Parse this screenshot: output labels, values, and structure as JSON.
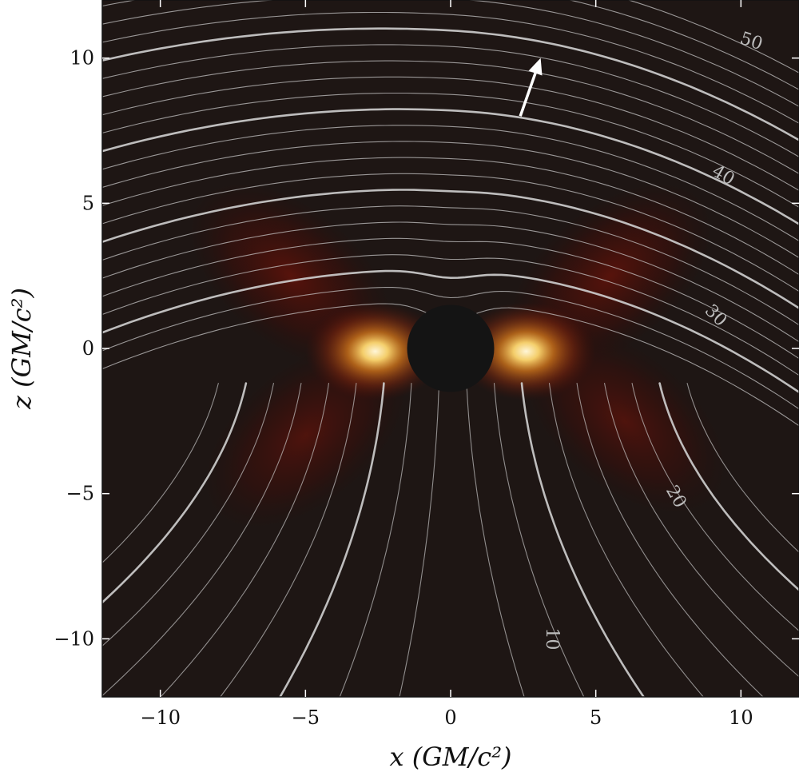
{
  "chart_data": {
    "type": "heatmap",
    "title": "",
    "xlabel": "x (GM/c²)",
    "ylabel": "z (GM/c²)",
    "xlim": [
      -12,
      12
    ],
    "ylim": [
      -12,
      12
    ],
    "xticks": [
      {
        "value": -10,
        "label": "−10"
      },
      {
        "value": -5,
        "label": "−5"
      },
      {
        "value": 0,
        "label": "0"
      },
      {
        "value": 5,
        "label": "5"
      },
      {
        "value": 10,
        "label": "10"
      }
    ],
    "yticks": [
      {
        "value": 10,
        "label": "10"
      },
      {
        "value": 5,
        "label": "5"
      },
      {
        "value": 0,
        "label": "0"
      },
      {
        "value": -5,
        "label": "−5"
      },
      {
        "value": -10,
        "label": "−10"
      }
    ],
    "background_color": "#1e1614",
    "field_line_color": "#cfcfcf",
    "colormap": [
      "#1e1614",
      "#5a0c06",
      "#a8320e",
      "#e6801c",
      "#ffd870",
      "#fff6d8"
    ],
    "black_hole": {
      "center": [
        0,
        0
      ],
      "radius": 1.5,
      "color": "#141414"
    },
    "emission_blobs": [
      {
        "x": -2.6,
        "z": -0.1,
        "peak": 1.0
      },
      {
        "x": 2.6,
        "z": -0.1,
        "peak": 1.0
      },
      {
        "x": -5.5,
        "z": 2.5,
        "peak": 0.35
      },
      {
        "x": 5.5,
        "z": 2.5,
        "peak": 0.35
      },
      {
        "x": -5.0,
        "z": -3.0,
        "peak": 0.3
      },
      {
        "x": 6.0,
        "z": -2.5,
        "peak": 0.3
      }
    ],
    "contour_labels": [
      {
        "text": "50",
        "x": 10.3,
        "z": 10.4,
        "angle_deg": 18
      },
      {
        "text": "40",
        "x": 9.3,
        "z": 5.8,
        "angle_deg": 30
      },
      {
        "text": "30",
        "x": 9.0,
        "z": 1.0,
        "angle_deg": 45
      },
      {
        "text": "20",
        "x": 7.6,
        "z": -5.2,
        "angle_deg": 60
      },
      {
        "text": "10",
        "x": 3.3,
        "z": -10.0,
        "angle_deg": 90
      }
    ],
    "arrow": {
      "from": [
        2.4,
        8.0
      ],
      "to": [
        3.1,
        10.0
      ],
      "color": "#ffffff"
    }
  }
}
